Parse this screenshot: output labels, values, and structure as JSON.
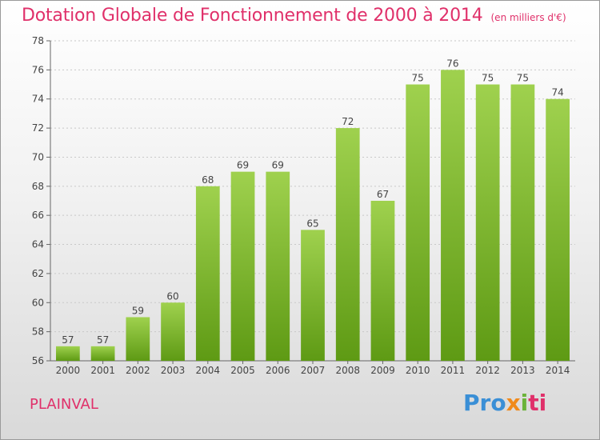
{
  "header": {
    "title": "Dotation Globale de Fonctionnement de 2000 à 2014",
    "unit": "(en milliers d'€)"
  },
  "footer": {
    "commune": "PLAINVAL",
    "logo": {
      "p1": "Pro",
      "p2": "x",
      "p3": "i",
      "p4": "ti"
    }
  },
  "colors": {
    "bar_top": "#9fd14e",
    "bar_bottom": "#5e9a14",
    "accent": "#e0306a"
  },
  "chart_data": {
    "type": "bar",
    "title": "Dotation Globale de Fonctionnement de 2000 à 2014",
    "subtitle": "(en milliers d'€)",
    "categories": [
      "2000",
      "2001",
      "2002",
      "2003",
      "2004",
      "2005",
      "2006",
      "2007",
      "2008",
      "2009",
      "2010",
      "2011",
      "2012",
      "2013",
      "2014"
    ],
    "values": [
      57,
      57,
      59,
      60,
      68,
      69,
      69,
      65,
      72,
      67,
      75,
      76,
      75,
      75,
      74
    ],
    "ylim": [
      56,
      78
    ],
    "yticks": [
      56,
      58,
      60,
      62,
      64,
      66,
      68,
      70,
      72,
      74,
      76,
      78
    ],
    "grid": true
  }
}
